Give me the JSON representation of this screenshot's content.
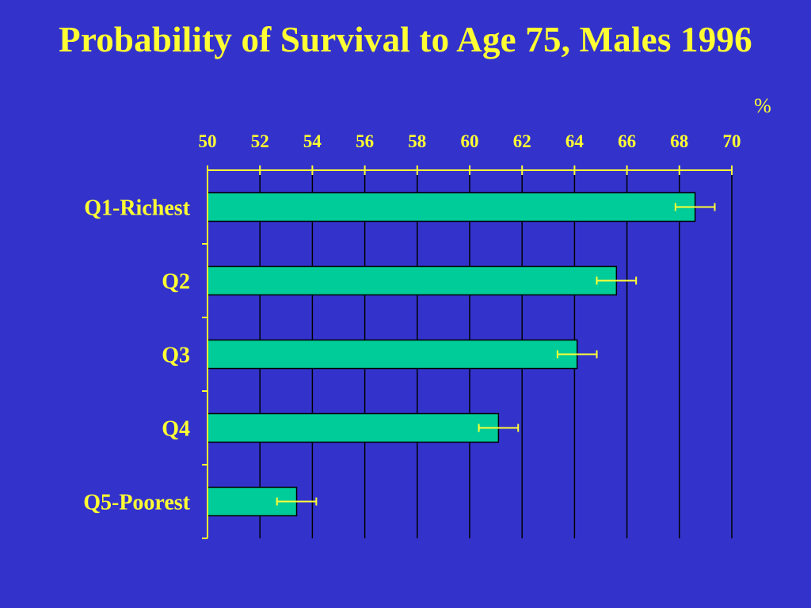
{
  "chart_data": {
    "type": "bar",
    "orientation": "horizontal",
    "title": "Probability of Survival to Age 75, Males 1996",
    "unit_label": "%",
    "categories": [
      "Q1-Richest",
      "Q2",
      "Q3",
      "Q4",
      "Q5-Poorest"
    ],
    "values": [
      68.6,
      65.6,
      64.1,
      61.1,
      53.4
    ],
    "error": [
      0.75,
      0.75,
      0.75,
      0.75,
      0.75
    ],
    "xlim": [
      50,
      70
    ],
    "xticks": [
      "50",
      "52",
      "54",
      "56",
      "58",
      "60",
      "62",
      "64",
      "66",
      "68",
      "70"
    ],
    "axis_position": "top",
    "grid": true,
    "legend": "none"
  },
  "colors": {
    "background": "#3333cc",
    "text": "#ffff33",
    "axis": "#ffff33",
    "bar_fill": "#00cc99",
    "bar_stroke": "#000000",
    "grid": "#000000",
    "error_bar": "#ffff33"
  }
}
